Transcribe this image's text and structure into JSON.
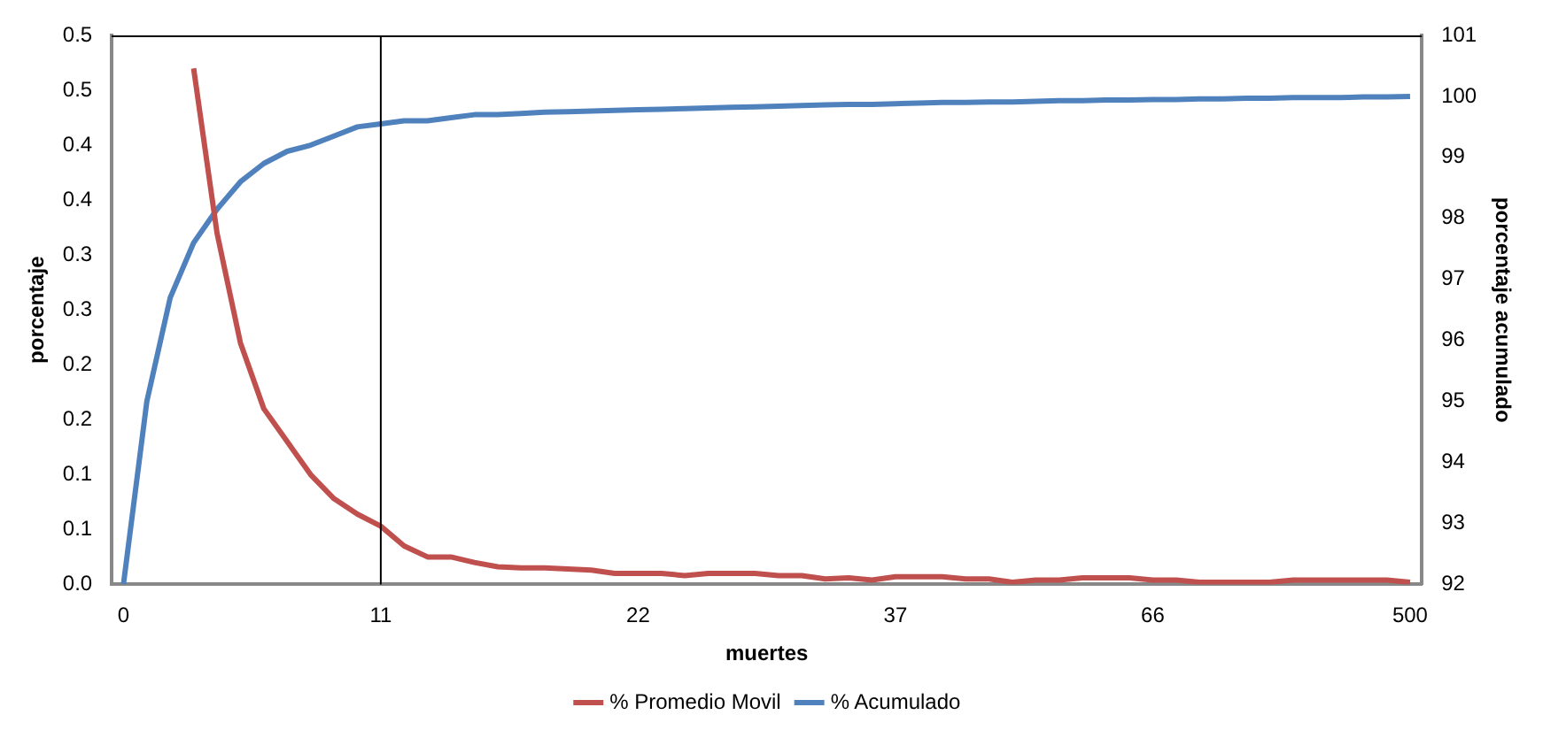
{
  "chart_data": {
    "type": "line",
    "xlabel": "muertes",
    "ylabel": "porcentaje",
    "y2label": "porcentaje acumulado",
    "categories": [
      "0",
      null,
      null,
      null,
      null,
      null,
      null,
      null,
      null,
      null,
      null,
      "11",
      null,
      null,
      null,
      null,
      null,
      null,
      null,
      null,
      null,
      null,
      "22",
      null,
      null,
      null,
      null,
      null,
      null,
      null,
      null,
      null,
      null,
      "37",
      null,
      null,
      null,
      null,
      null,
      null,
      null,
      null,
      null,
      null,
      "66",
      null,
      null,
      null,
      null,
      null,
      null,
      null,
      null,
      null,
      null,
      "500"
    ],
    "series": [
      {
        "name": "% Promedio Movil",
        "color": "#c0504d",
        "values": [
          null,
          null,
          null,
          0.47,
          0.32,
          0.22,
          0.16,
          0.13,
          0.1,
          0.078,
          0.064,
          0.053,
          0.035,
          0.025,
          0.025,
          0.02,
          0.016,
          0.015,
          0.015,
          0.014,
          0.013,
          0.01,
          0.01,
          0.01,
          0.008,
          0.01,
          0.01,
          0.01,
          0.008,
          0.008,
          0.005,
          0.006,
          0.004,
          0.007,
          0.007,
          0.007,
          0.005,
          0.005,
          0.002,
          0.004,
          0.004,
          0.006,
          0.006,
          0.006,
          0.004,
          0.004,
          0.002,
          0.002,
          0.002,
          0.002,
          0.004,
          0.004,
          0.004,
          0.004,
          0.004,
          0.002
        ]
      },
      {
        "name": "% Acumulado",
        "color": "#4f81bd",
        "axis": "y2",
        "values": [
          92,
          95,
          96.7,
          97.6,
          98.15,
          98.6,
          98.9,
          99.1,
          99.2,
          99.35,
          99.5,
          99.55,
          99.6,
          99.6,
          99.65,
          99.7,
          99.7,
          99.72,
          99.74,
          99.75,
          99.76,
          99.77,
          99.78,
          99.79,
          99.8,
          99.81,
          99.82,
          99.83,
          99.84,
          99.85,
          99.86,
          99.87,
          99.87,
          99.88,
          99.89,
          99.9,
          99.9,
          99.91,
          99.91,
          99.92,
          99.93,
          99.93,
          99.94,
          99.94,
          99.95,
          99.95,
          99.96,
          99.96,
          99.97,
          99.97,
          99.98,
          99.98,
          99.98,
          99.99,
          99.99,
          100
        ]
      }
    ],
    "ylim": [
      0,
      0.5
    ],
    "yticks": [
      {
        "value": 0,
        "label": "0.0"
      },
      {
        "value": 0.05,
        "label": "0.1"
      },
      {
        "value": 0.1,
        "label": "0.1"
      },
      {
        "value": 0.15,
        "label": "0.2"
      },
      {
        "value": 0.2,
        "label": "0.2"
      },
      {
        "value": 0.25,
        "label": "0.3"
      },
      {
        "value": 0.3,
        "label": "0.3"
      },
      {
        "value": 0.35,
        "label": "0.4"
      },
      {
        "value": 0.4,
        "label": "0.4"
      },
      {
        "value": 0.45,
        "label": "0.5"
      },
      {
        "value": 0.5,
        "label": "0.5"
      }
    ],
    "y2lim": [
      92,
      101
    ],
    "y2ticks": [
      92,
      93,
      94,
      95,
      96,
      97,
      98,
      99,
      100,
      101
    ],
    "ref_lines": [
      {
        "axis": "x",
        "value": "11",
        "color": "#000000"
      }
    ],
    "grid": false,
    "legend": "bottom",
    "marker": "none",
    "line_style": "solid"
  }
}
